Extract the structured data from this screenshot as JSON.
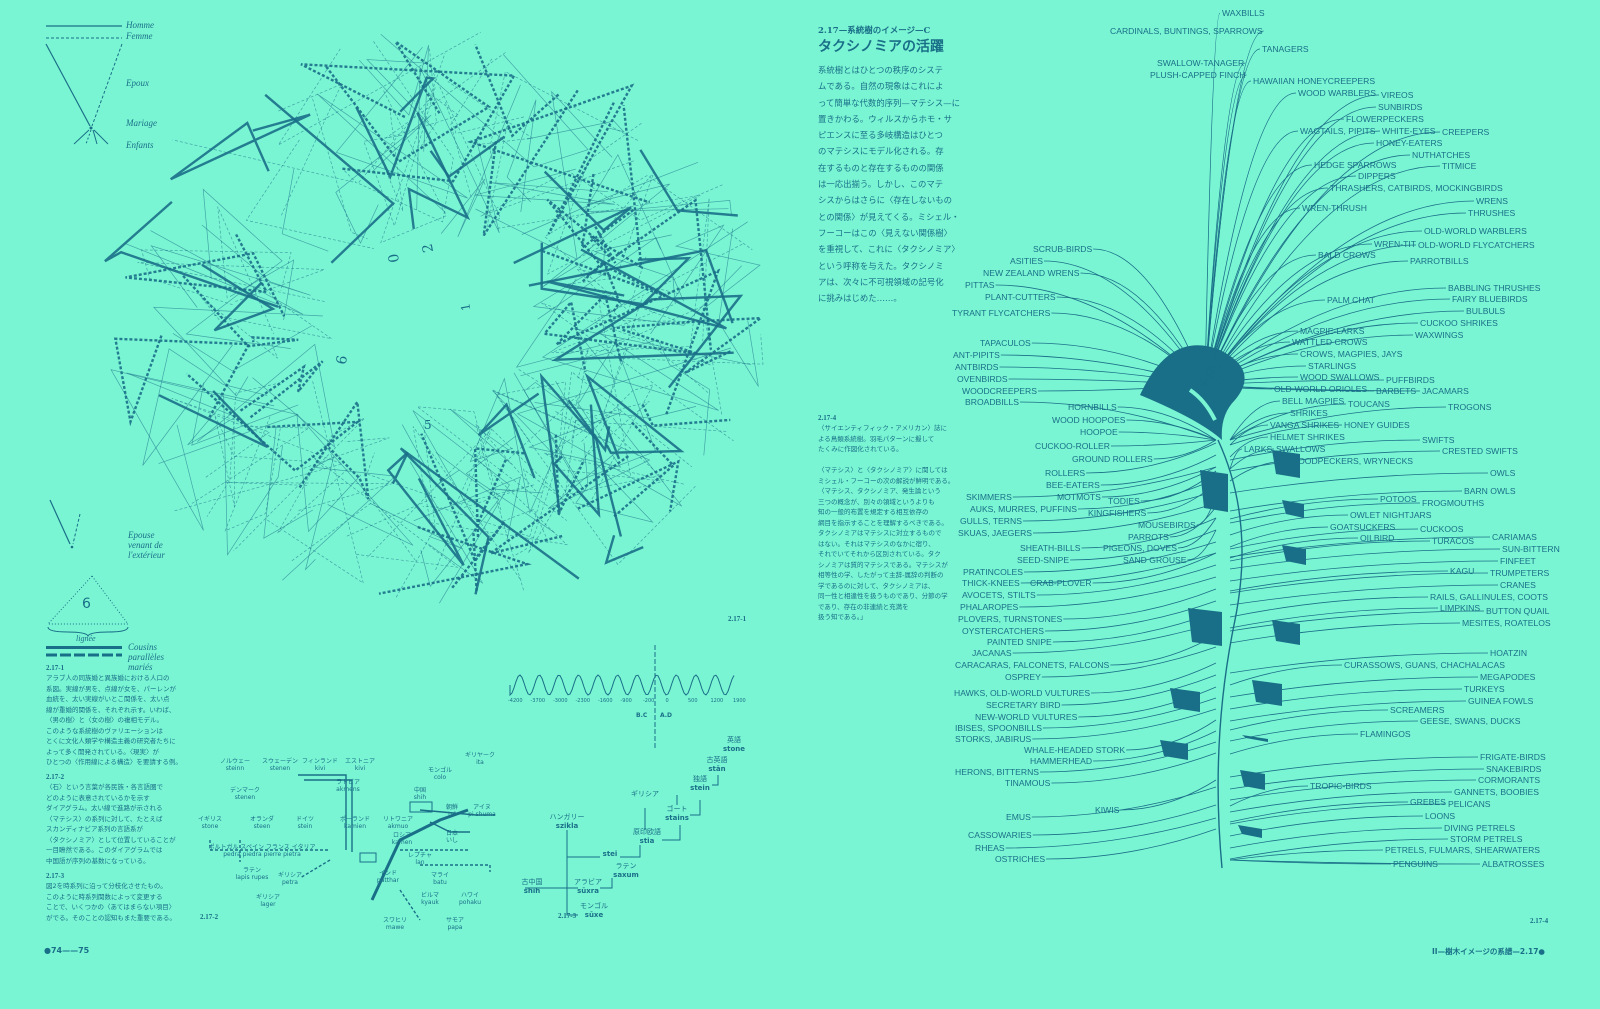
{
  "colors": {
    "background": "#7af5d3",
    "ink": "#1a6f88"
  },
  "legend": {
    "homme": "Homme",
    "femme": "Femme",
    "epoux": "Epoux",
    "mariage": "Mariage",
    "enfants": "Enfants",
    "epouse_exterieur": [
      "Epouse",
      "venant de",
      "l'extérieur"
    ],
    "lignee_number": "6",
    "lignee": "lignée",
    "cousins": [
      "Cousins",
      "parallèles mariés"
    ]
  },
  "circle_diagram": {
    "labels": [
      "1",
      "2",
      "0",
      "6",
      "5"
    ]
  },
  "captions": {
    "c1": {
      "no": "2.17-1",
      "lines": [
        "アラブ人の同族婚と異族婚における人口の",
        "系図。実線が男を、点線が女を、パーレンが",
        "血統を、太い実線がいとこ関係を、太い点",
        "線が重婚的関係を、それぞれ示す。いわば、",
        "〈男の樹〉と〈女の樹〉の複相モデル。",
        "このような系統樹のヴァリエーションは",
        "とくに文化人類学や構造主義の研究者たちに",
        "よって多く開発されている。〈現実〉が",
        "ひとつの〈作用線による構造〉を要請する例。"
      ]
    },
    "c2": {
      "no": "2.17-2",
      "lines": [
        "〈石〉という言葉が各民族・各言語圏で",
        "どのように表意されているかを示す",
        "ダイアグラム。太い線で進路が示される",
        "〈マテシス〉の系列に対して、たとえば",
        "スカンディナビア系列の言語系が",
        "〈タクシノミア〉として位置していることが",
        "一目瞭然である。このダイアグラムでは",
        "中国語が序列の基数になっている。"
      ]
    },
    "c3": {
      "no": "2.17-3",
      "lines": [
        "図2を時系列に沿って分枝化させたもの。",
        "このように時系列関数によって変更する",
        "ことで、いくつかの〈あてはまらない項目〉",
        "がでる。そのことの認知もまた重要である。"
      ]
    },
    "c4": {
      "no": "2.17-4",
      "lines": [
        "〈サイエンティフィック・アメリカン〉誌に",
        "よる鳥類系統樹。羽毛パターンに擬して",
        "たくみに作図化されている。",
        "",
        "〈マテシス〉と〈タクシノミア〉に関しては",
        "ミシェル・フーコーの次の解説が鮮明である。",
        "〈マテシス、タクシノミア、発生論という",
        "三つの概念が、別々の領域というよりも",
        "知の一般的布置を規定する相互依存の",
        "網目を指示することを理解するべきである。",
        "タクシノミアはマテシスに対立するもので",
        "はない。それはマテシスのなかに宿り、",
        "それでいてそれから区別されている。タク",
        "シノミアは質的マテシスである。マテシスが",
        "相等性の学、したがって主辞-属辞の判断の",
        "学であるのに対して、タクシノミアは、",
        "同一性と相違性を扱うものであり、分節の学",
        "であり、存在の非連続と充満を",
        "扱う知である。」"
      ]
    }
  },
  "figure_labels": {
    "f1": "2.17-1",
    "f2": "2.17-2",
    "f3": "2.17-3",
    "f4": "2.17-4"
  },
  "article": {
    "kicker": "2.17—系統樹のイメージ—C",
    "title": "タクシノミアの活躍",
    "lines": [
      "系統樹とはひとつの秩序のシステ",
      "ムである。自然の現象はこれによ",
      "って簡単な代数的序列—マテシス—に",
      "置きかわる。ウィルスからホモ・サ",
      "ピエンスに至る多岐構造はひとつ",
      "のマテシスにモデル化される。存",
      "在するものと存在するものの関係",
      "は一応出揃う。しかし、このマテ",
      "シスからはさらに〈存在しないもの",
      "との関係〉が見えてくる。ミシェル・",
      "フーコーはこの〈見えない関係樹〉",
      "を重視して、これに〈タクシノミア〉",
      "という呼称を与えた。タクシノミ",
      "アは、次々に不可視領域の記号化",
      "に挑みはじめた……。"
    ]
  },
  "timeline": {
    "ticks": [
      "-4200",
      "-3700",
      "-3000",
      "-2300",
      "-1600",
      "-900",
      "-200",
      "0",
      "500",
      "1200",
      "1900"
    ],
    "bc": "B.C",
    "ad": "A.D",
    "words": [
      {
        "lang": "古中国",
        "word": "shih"
      },
      {
        "lang": "アラビア",
        "word": "sūxra"
      },
      {
        "lang": "ラテン",
        "word": "saxum"
      },
      {
        "lang": "モンゴル",
        "word": "sūxe"
      },
      {
        "lang": "ハンガリー",
        "word": "szikla"
      },
      {
        "lang": "",
        "word": "stei"
      },
      {
        "lang": "原印欧語",
        "word": "stia"
      },
      {
        "lang": "ギリシア",
        "word": ""
      },
      {
        "lang": "ゴート",
        "word": "stains"
      },
      {
        "lang": "独語",
        "word": "stein"
      },
      {
        "lang": "古英語",
        "word": "stān"
      },
      {
        "lang": "英語",
        "word": "stone"
      }
    ]
  },
  "language_network": {
    "nodes": [
      {
        "lang": "ノルウェー",
        "word": "steinn"
      },
      {
        "lang": "スウェーデン",
        "word": "stenen"
      },
      {
        "lang": "フィンランド",
        "word": "kivi"
      },
      {
        "lang": "エストニア",
        "word": "kivi"
      },
      {
        "lang": "デンマーク",
        "word": "stenen"
      },
      {
        "lang": "ラトビア",
        "word": "akmens"
      },
      {
        "lang": "イギリス",
        "word": "stone"
      },
      {
        "lang": "オランダ",
        "word": "steen"
      },
      {
        "lang": "ドイツ",
        "word": "stein"
      },
      {
        "lang": "ポーランド",
        "word": "kamien"
      },
      {
        "lang": "リトワニア",
        "word": "akmuo"
      },
      {
        "lang": "ロシア",
        "word": "kamen"
      },
      {
        "lang": "ポルトガル スペイン フランス イタリア",
        "word": "pedra piedra pierre pietra"
      },
      {
        "lang": "ラテン",
        "word": "lapis rupes"
      },
      {
        "lang": "ギリシア",
        "word": "petra"
      },
      {
        "lang": "ギリシア",
        "word": "lager"
      },
      {
        "lang": "モンゴル",
        "word": "colo"
      },
      {
        "lang": "中国",
        "word": "shih"
      },
      {
        "lang": "朝鮮",
        "word": "tol"
      },
      {
        "lang": "アイヌ",
        "word": "pi shuma"
      },
      {
        "lang": "日本",
        "word": "いし"
      },
      {
        "lang": "ギリヤーク",
        "word": "ita"
      },
      {
        "lang": "レプチャ",
        "word": "lan"
      },
      {
        "lang": "インド",
        "word": "patthar"
      },
      {
        "lang": "マライ",
        "word": "batu"
      },
      {
        "lang": "ビルマ",
        "word": "kyauk"
      },
      {
        "lang": "ハワイ",
        "word": "pohaku"
      },
      {
        "lang": "スワヒリ",
        "word": "mawe"
      },
      {
        "lang": "サモア",
        "word": "papa"
      }
    ]
  },
  "bird_tree": {
    "labels": [
      "WAXBILLS",
      "CARDINALS, BUNTINGS, SPARROWS",
      "TANAGERS",
      "SWALLOW-TANAGER",
      "PLUSH-CAPPED FINCH",
      "HAWAIIAN HONEYCREEPERS",
      "WOOD WARBLERS",
      "VIREOS",
      "SUNBIRDS",
      "FLOWERPECKERS",
      "WHITE-EYES",
      "HONEY-EATERS",
      "WAGTAILS, PIPITS",
      "CREEPERS",
      "NUTHATCHES",
      "TITMICE",
      "HEDGE SPARROWS",
      "DIPPERS",
      "THRASHERS, CATBIRDS, MOCKINGBIRDS",
      "WRENS",
      "THRUSHES",
      "WREN-THRUSH",
      "OLD-WORLD WARBLERS",
      "OLD-WORLD FLYCATCHERS",
      "WREN-TIT",
      "PARROTBILLS",
      "BALD CROWS",
      "BABBLING THRUSHES",
      "FAIRY BLUEBIRDS",
      "BULBULS",
      "PALM CHAT",
      "CUCKOO SHRIKES",
      "WAXWINGS",
      "MAGPIE-LARKS",
      "WATTLED CROWS",
      "CROWS, MAGPIES, JAYS",
      "STARLINGS",
      "WOOD SWALLOWS",
      "OLD-WORLD ORIOLES",
      "BELL MAGPIES",
      "SHRIKES",
      "VANGA SHRIKES",
      "HELMET SHRIKES",
      "SWALLOWS",
      "LARKS",
      "WOODPECKERS, WRYNECKS",
      "HONEY GUIDES",
      "TOUCANS",
      "BARBETS",
      "PUFFBIRDS",
      "JACAMARS",
      "TROGONS",
      "SWIFTS",
      "CRESTED SWIFTS",
      "OWLS",
      "BARN OWLS",
      "GOATSUCKERS",
      "OWLET NIGHTJARS",
      "POTOOS",
      "FROGMOUTHS",
      "OILBIRD",
      "CUCKOOS",
      "TURACOS",
      "CARIAMAS",
      "SUN-BITTERN",
      "KAGU",
      "FINFEET",
      "RAILS, GALLINULES, COOTS",
      "TRUMPETERS",
      "LIMPKINS",
      "CRANES",
      "BUTTON QUAIL",
      "MESITES, ROATELOS",
      "HOATZIN",
      "CURASSOWS, GUANS, CHACHALACAS",
      "MEGAPODES",
      "TURKEYS",
      "GUINEA FOWLS",
      "SCREAMERS",
      "GEESE, SWANS, DUCKS",
      "FLAMINGOS",
      "FRIGATE-BIRDS",
      "SNAKEBIRDS",
      "CORMORANTS",
      "GANNETS, BOOBIES",
      "PELICANS",
      "TROPIC-BIRDS",
      "GREBES",
      "LOONS",
      "DIVING PETRELS",
      "STORM PETRELS",
      "PETRELS, FULMARS, SHEARWATERS",
      "ALBATROSSES",
      "PENGUINS",
      "SCRUB-BIRDS",
      "ASITIES",
      "NEW ZEALAND WRENS",
      "PITTAS",
      "PLANT-CUTTERS",
      "TYRANT FLYCATCHERS",
      "TAPACULOS",
      "ANT-PIPITS",
      "ANTBIRDS",
      "OVENBIRDS",
      "WOODCREEPERS",
      "BROADBILLS",
      "HORNBILLS",
      "WOOD HOOPOES",
      "HOOPOE",
      "CUCKOO-ROLLER",
      "GROUND ROLLERS",
      "ROLLERS",
      "BEE-EATERS",
      "MOTMOTS",
      "AUKS, MURRES, PUFFINS",
      "SKIMMERS",
      "TODIES",
      "KINGFISHERS",
      "GULLS, TERNS",
      "SKUAS, JAEGERS",
      "MOUSEBIRDS",
      "PARROTS",
      "PIGEONS, DOVES",
      "SAND GROUSE",
      "SHEATH-BILLS",
      "SEED-SNIPE",
      "PRATINCOLES",
      "THICK-KNEES",
      "CRAB-PLOVER",
      "AVOCETS, STILTS",
      "PHALAROPES",
      "PLOVERS, TURNSTONES",
      "OYSTERCATCHERS",
      "PAINTED SNIPE",
      "JACANAS",
      "CARACARAS, FALCONETS, FALCONS",
      "OSPREY",
      "HAWKS, OLD-WORLD VULTURES",
      "SECRETARY BIRD",
      "NEW-WORLD VULTURES",
      "IBISES, SPOONBILLS",
      "STORKS, JABIRUS",
      "WHALE-HEADED STORK",
      "HAMMERHEAD",
      "HERONS, BITTERNS",
      "TINAMOUS",
      "KIWIS",
      "EMUS",
      "CASSOWARIES",
      "RHEAS",
      "OSTRICHES"
    ]
  },
  "footer": {
    "left": "●74——75",
    "right": "II—樹木イメージの系譜—2.17●"
  }
}
